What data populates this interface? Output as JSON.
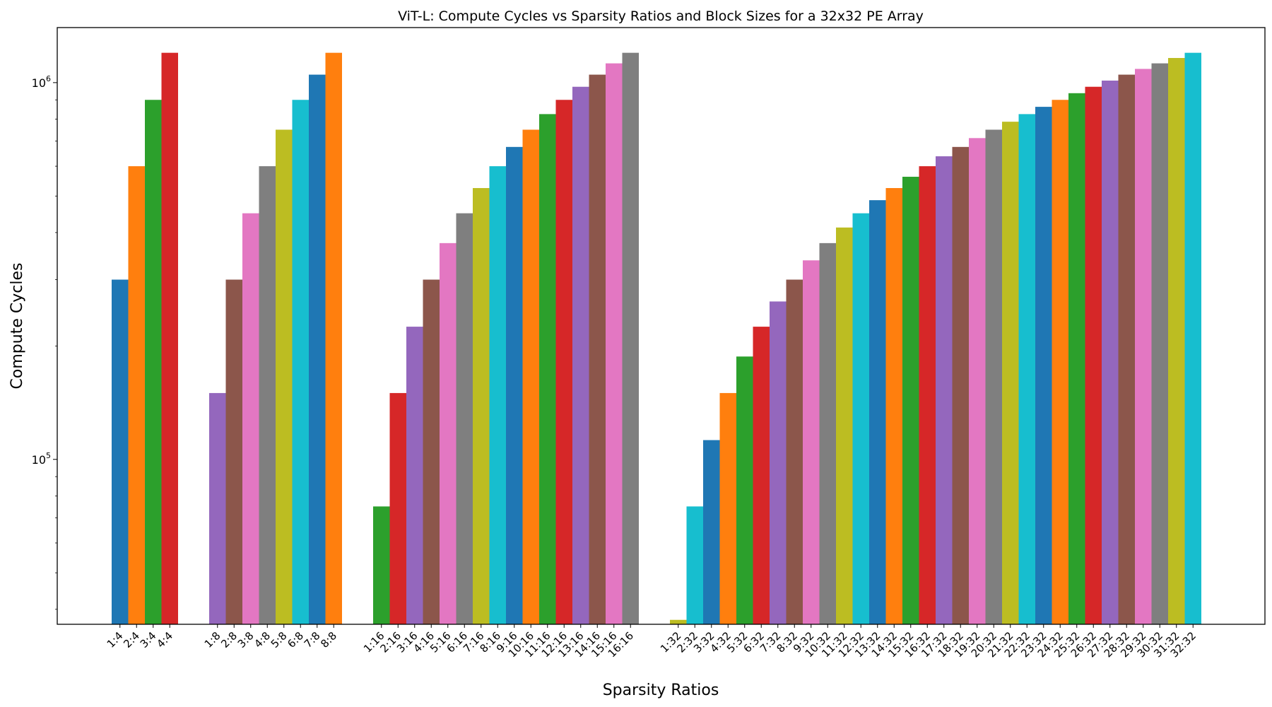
{
  "chart_data": {
    "type": "bar",
    "title": "ViT-L: Compute Cycles vs Sparsity Ratios and Block Sizes for a 32x32 PE Array",
    "xlabel": "Sparsity Ratios",
    "ylabel": "Compute Cycles",
    "yscale": "log",
    "ylim": [
      36500,
      1400000
    ],
    "yticks": [
      {
        "value": 100000,
        "base": "10",
        "exp": "5"
      },
      {
        "value": 1000000,
        "base": "10",
        "exp": "6"
      }
    ],
    "grid": false,
    "legend": "none",
    "palette": [
      "#1f77b4",
      "#ff7f0e",
      "#2ca02c",
      "#d62728",
      "#9467bd",
      "#8c564b",
      "#e377c2",
      "#7f7f7f",
      "#bcbd22",
      "#17becf"
    ],
    "groups": [
      {
        "block": 4,
        "categories": [
          "1:4",
          "2:4",
          "3:4",
          "4:4"
        ],
        "values": [
          300000,
          600000,
          900000,
          1200000
        ]
      },
      {
        "block": 8,
        "categories": [
          "1:8",
          "2:8",
          "3:8",
          "4:8",
          "5:8",
          "6:8",
          "7:8",
          "8:8"
        ],
        "values": [
          150000,
          300000,
          450000,
          600000,
          750000,
          900000,
          1050000,
          1200000
        ]
      },
      {
        "block": 16,
        "categories": [
          "1:16",
          "2:16",
          "3:16",
          "4:16",
          "5:16",
          "6:16",
          "7:16",
          "8:16",
          "9:16",
          "10:16",
          "11:16",
          "12:16",
          "13:16",
          "14:16",
          "15:16",
          "16:16"
        ],
        "values": [
          75000,
          150000,
          225000,
          300000,
          375000,
          450000,
          525000,
          600000,
          675000,
          750000,
          825000,
          900000,
          975000,
          1050000,
          1125000,
          1200000
        ]
      },
      {
        "block": 32,
        "categories": [
          "1:32",
          "2:32",
          "3:32",
          "4:32",
          "5:32",
          "6:32",
          "7:32",
          "8:32",
          "9:32",
          "10:32",
          "11:32",
          "12:32",
          "13:32",
          "14:32",
          "15:32",
          "16:32",
          "17:32",
          "18:32",
          "19:32",
          "20:32",
          "21:32",
          "22:32",
          "23:32",
          "24:32",
          "25:32",
          "26:32",
          "27:32",
          "28:32",
          "29:32",
          "30:32",
          "31:32",
          "32:32"
        ],
        "values": [
          37500,
          75000,
          112500,
          150000,
          187500,
          225000,
          262500,
          300000,
          337500,
          375000,
          412500,
          450000,
          487500,
          525000,
          562500,
          600000,
          637500,
          675000,
          712500,
          750000,
          787500,
          825000,
          862500,
          900000,
          937500,
          975000,
          1012500,
          1050000,
          1087500,
          1125000,
          1162500,
          1200000
        ]
      }
    ]
  }
}
